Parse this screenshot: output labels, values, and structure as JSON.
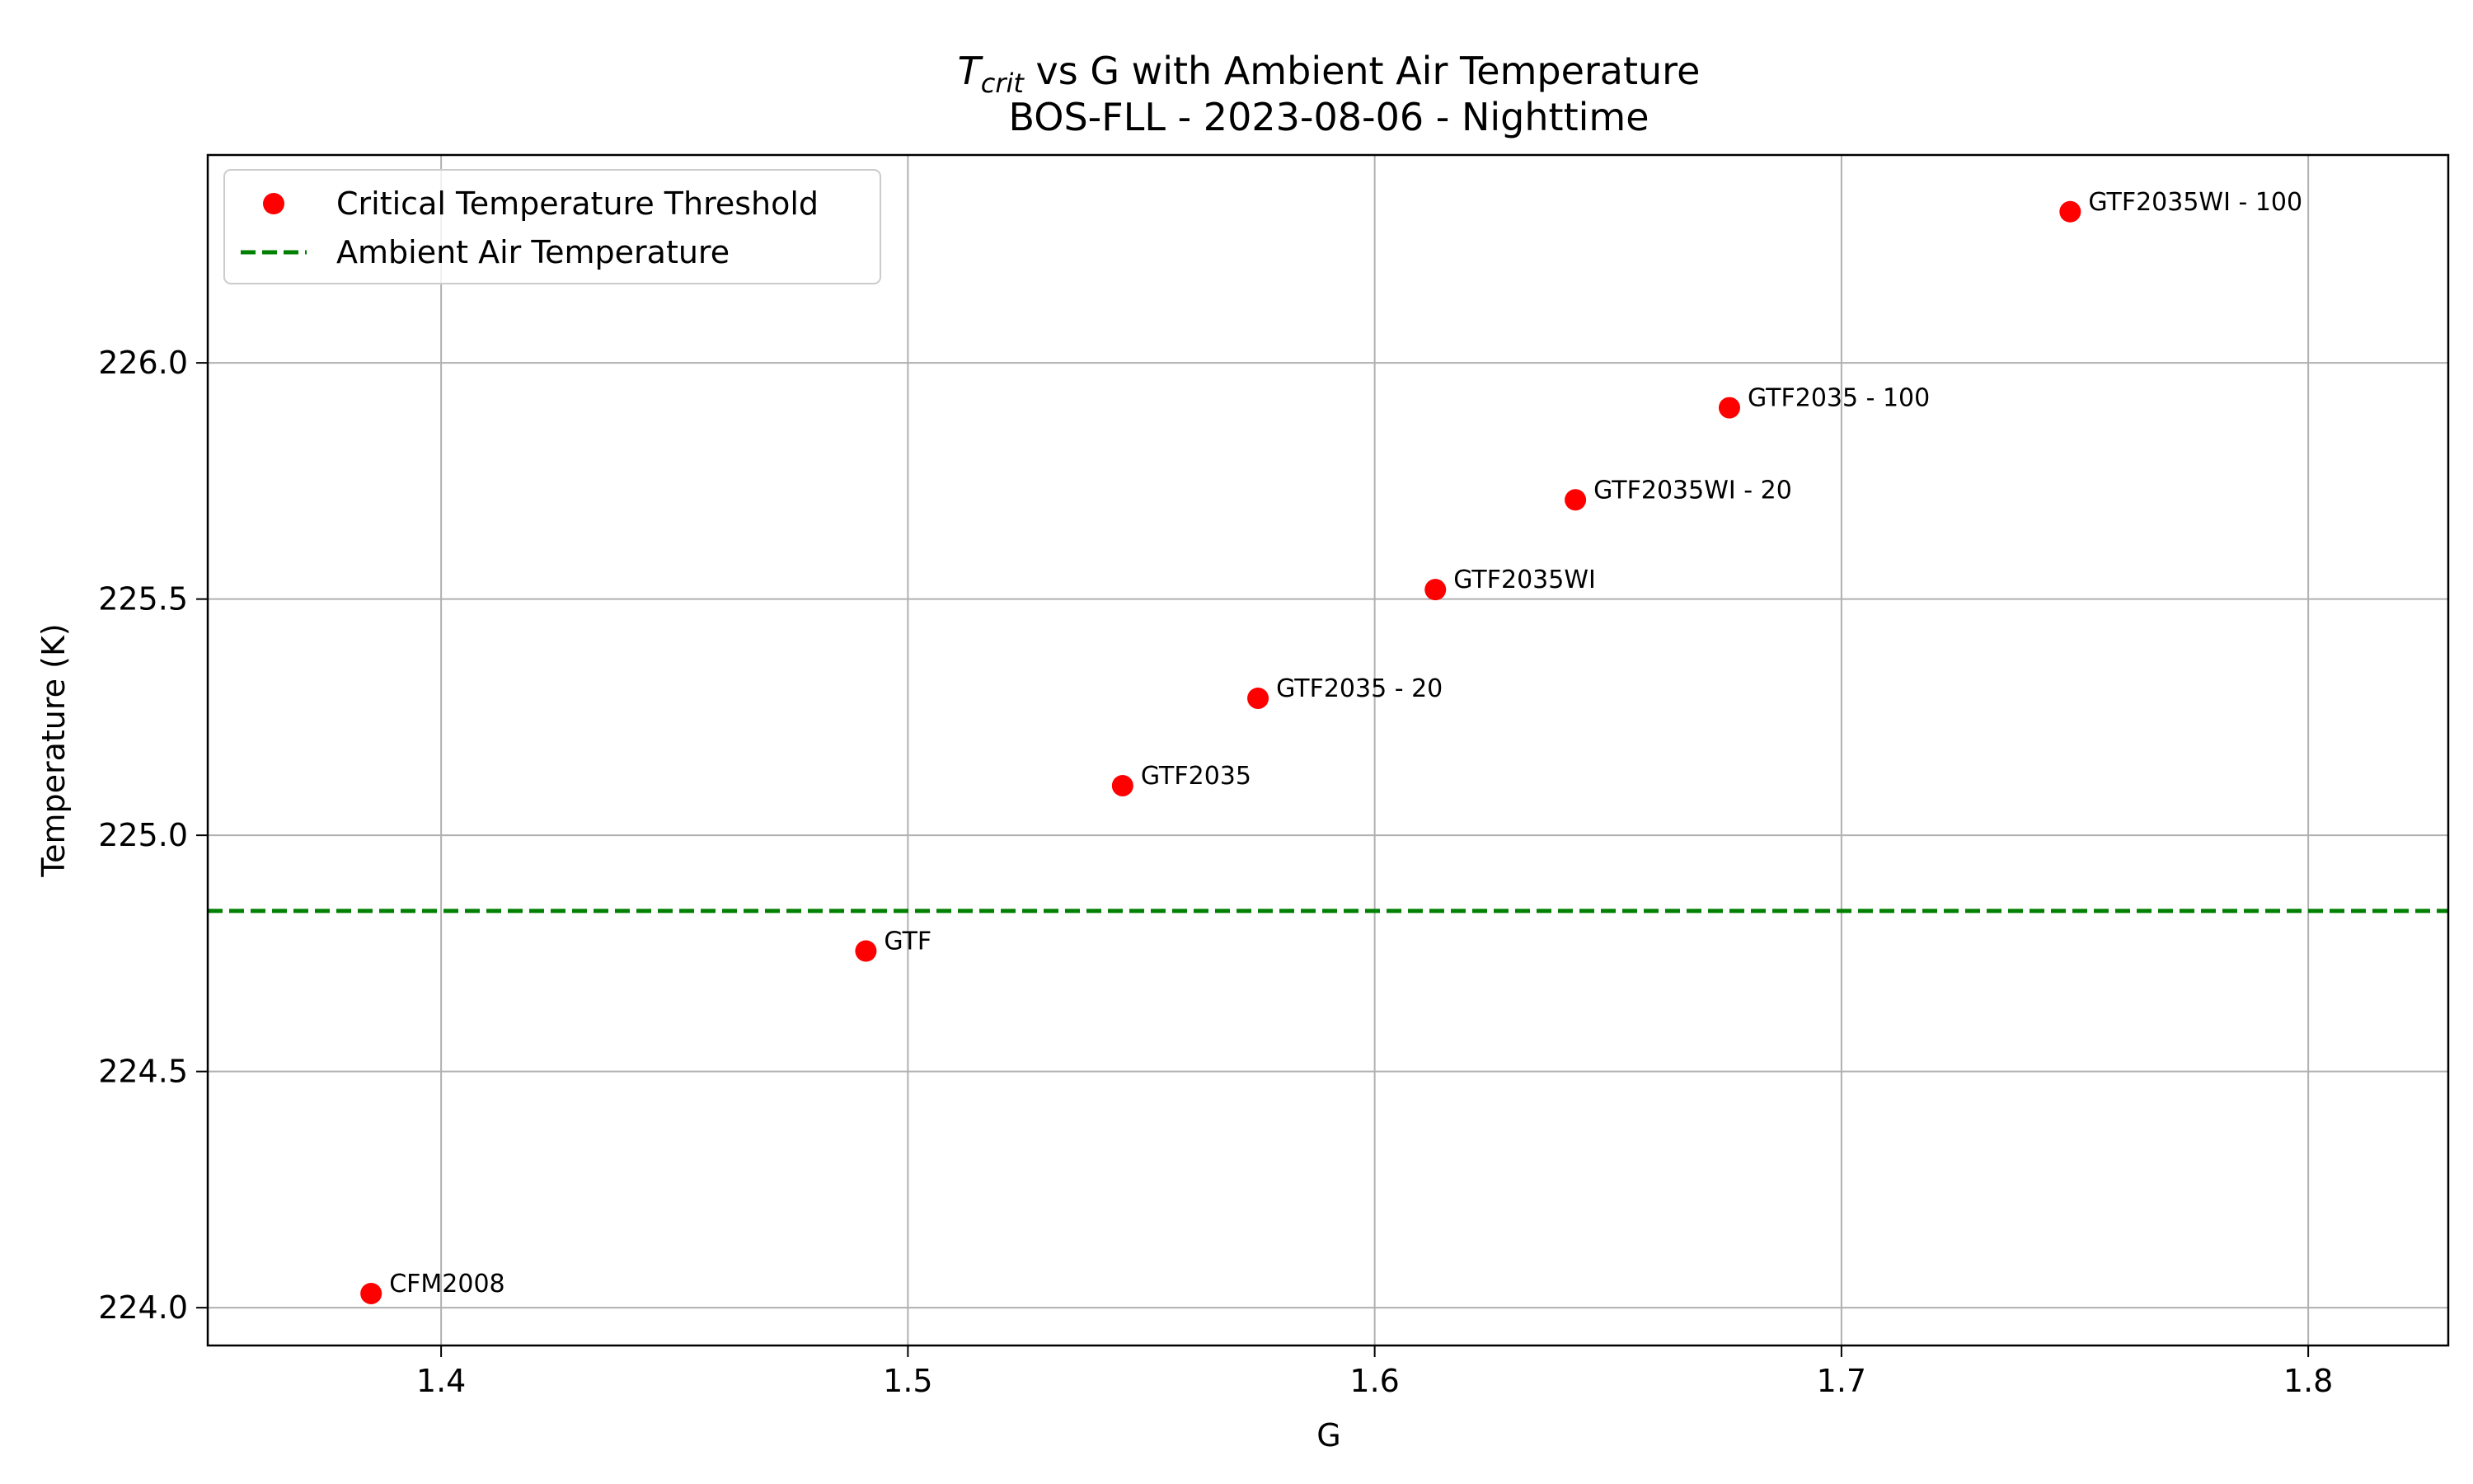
{
  "chart_data": {
    "type": "scatter",
    "title_main": "T",
    "title_sub": "crit",
    "title_rest": " vs G with Ambient Air Temperature",
    "subtitle": "BOS-FLL - 2023-08-06 - Nighttime",
    "xlabel": "G",
    "ylabel": "Temperature (K)",
    "xlim": [
      1.35,
      1.83
    ],
    "ylim": [
      223.92,
      226.44
    ],
    "xticks": [
      1.4,
      1.5,
      1.6,
      1.7,
      1.8
    ],
    "yticks": [
      224.0,
      224.5,
      225.0,
      225.5,
      226.0
    ],
    "xtick_labels": [
      "1.4",
      "1.5",
      "1.6",
      "1.7",
      "1.8"
    ],
    "ytick_labels": [
      "224.0",
      "224.5",
      "225.0",
      "225.5",
      "226.0"
    ],
    "grid": true,
    "legend_position": "top-left",
    "series": [
      {
        "name": "Critical Temperature Threshold",
        "kind": "scatter",
        "color": "#ff0000",
        "points": [
          {
            "label": "CFM2008",
            "x": 1.385,
            "y": 224.03
          },
          {
            "label": "GTF",
            "x": 1.491,
            "y": 224.755
          },
          {
            "label": "GTF2035",
            "x": 1.546,
            "y": 225.105
          },
          {
            "label": "GTF2035 - 20",
            "x": 1.575,
            "y": 225.29
          },
          {
            "label": "GTF2035WI",
            "x": 1.613,
            "y": 225.52
          },
          {
            "label": "GTF2035WI - 20",
            "x": 1.643,
            "y": 225.71
          },
          {
            "label": "GTF2035 - 100",
            "x": 1.676,
            "y": 225.905
          },
          {
            "label": "GTF2035WI - 100",
            "x": 1.749,
            "y": 226.32
          }
        ]
      },
      {
        "name": "Ambient Air Temperature",
        "kind": "hline",
        "color": "#008000",
        "y": 224.84
      }
    ]
  }
}
